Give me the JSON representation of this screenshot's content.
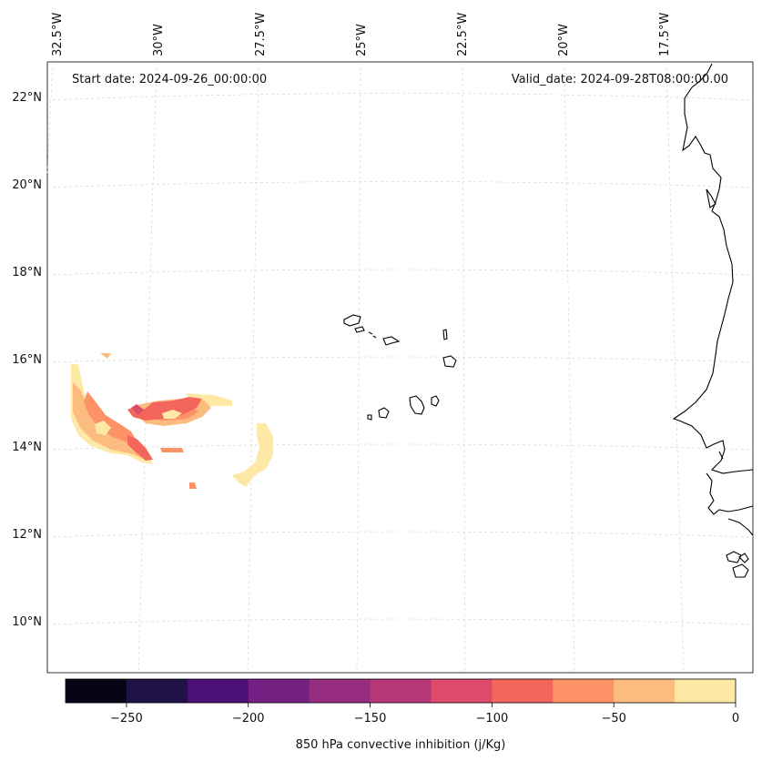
{
  "header": {
    "start_date": "Start date: 2024-09-26_00:00:00",
    "valid_date": "Valid_date: 2024-09-28T08:00:00.00"
  },
  "lon_labels": [
    "32.5°W",
    "30°W",
    "27.5°W",
    "25°W",
    "22.5°W",
    "20°W",
    "17.5°W"
  ],
  "lat_labels": [
    "22°N",
    "20°N",
    "18°N",
    "16°N",
    "14°N",
    "12°N",
    "10°N"
  ],
  "colorbar": {
    "label": "850 hPa convective inhibition (j/Kg)",
    "tick_labels": [
      "−250",
      "−200",
      "−150",
      "−100",
      "−50",
      "0"
    ],
    "range": [
      -275,
      0
    ],
    "colors": [
      "#050416",
      "#1e1146",
      "#4b0f78",
      "#741f82",
      "#952c7f",
      "#b73779",
      "#dd4a6a",
      "#f2665c",
      "#fc9265",
      "#fdbc7f",
      "#fde8a6"
    ]
  }
}
